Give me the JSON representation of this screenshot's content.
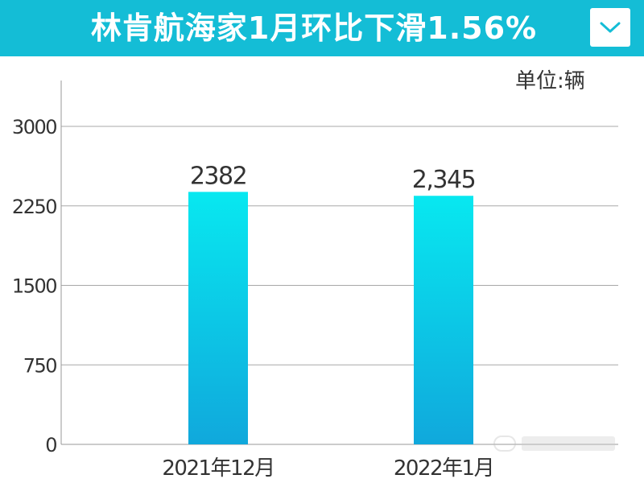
{
  "header": {
    "title": "林肯航海家1月环比下滑1.56%",
    "dropdown_icon": "chevron-down-icon",
    "bar_color": "#14bdd6"
  },
  "unit": "单位:辆",
  "watermark_icon": "site-logo-watermark",
  "chart_data": {
    "type": "bar",
    "categories": [
      "2021年12月",
      "2022年1月"
    ],
    "values": [
      2382,
      2345
    ],
    "value_labels": [
      "2382",
      "2,345"
    ],
    "yticks": [
      0,
      750,
      1500,
      2250,
      3000
    ],
    "ytick_labels": [
      "0",
      "750",
      "1500",
      "2250",
      "3000"
    ],
    "ylim": [
      0,
      3400
    ],
    "grid": true,
    "bar_color_top": "#08e8f0",
    "bar_color_bottom": "#10a8dc"
  }
}
